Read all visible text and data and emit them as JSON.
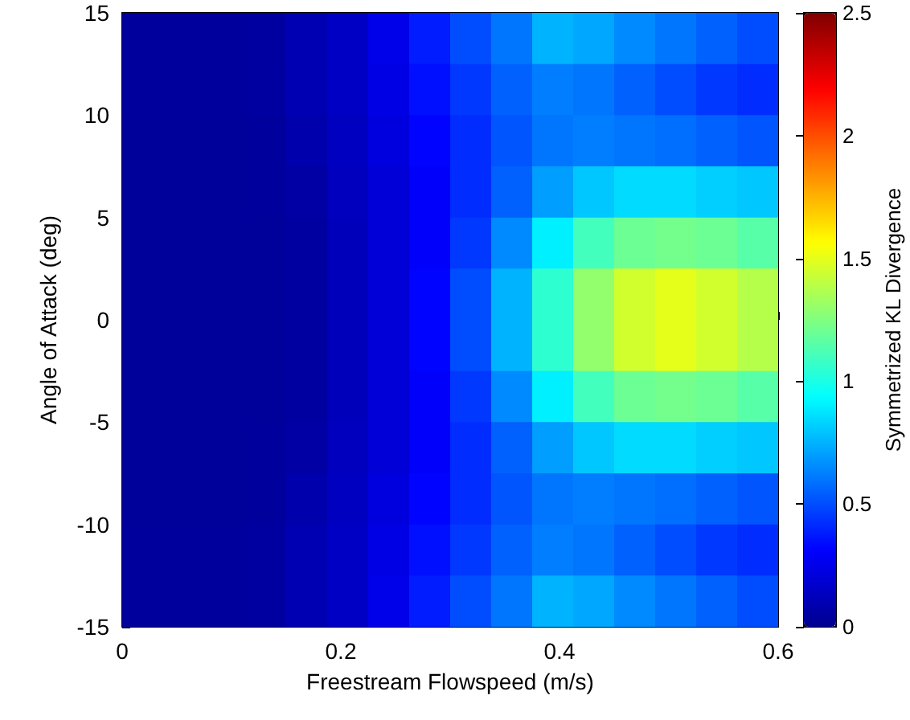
{
  "chart_data": {
    "type": "heatmap",
    "xlabel": "Freestream Flowspeed (m/s)",
    "ylabel": "Angle of Attack (deg)",
    "clabel": "Symmetrized KL Divergence",
    "xlim": [
      0,
      0.6
    ],
    "xticks": [
      0,
      0.2,
      0.4,
      0.6
    ],
    "ylim": [
      -15,
      15
    ],
    "yticks": [
      -15,
      -10,
      -5,
      0,
      5,
      10,
      15
    ],
    "clim": [
      0,
      2.5
    ],
    "cticks": [
      0,
      0.5,
      1,
      1.5,
      2,
      2.5
    ],
    "cells": [
      [
        0.04,
        0.04,
        0.04,
        0.05,
        0.1,
        0.15,
        0.25,
        0.38,
        0.5,
        0.6,
        0.75,
        0.72,
        0.65,
        0.6,
        0.55,
        0.5
      ],
      [
        0.04,
        0.04,
        0.04,
        0.05,
        0.1,
        0.15,
        0.24,
        0.35,
        0.45,
        0.55,
        0.62,
        0.6,
        0.55,
        0.5,
        0.45,
        0.42
      ],
      [
        0.03,
        0.03,
        0.03,
        0.04,
        0.08,
        0.14,
        0.22,
        0.32,
        0.42,
        0.52,
        0.6,
        0.62,
        0.6,
        0.58,
        0.55,
        0.52
      ],
      [
        0.03,
        0.03,
        0.03,
        0.04,
        0.06,
        0.13,
        0.2,
        0.3,
        0.42,
        0.55,
        0.7,
        0.8,
        0.85,
        0.85,
        0.82,
        0.8
      ],
      [
        0.03,
        0.03,
        0.03,
        0.03,
        0.05,
        0.12,
        0.2,
        0.3,
        0.45,
        0.65,
        0.9,
        1.1,
        1.2,
        1.22,
        1.2,
        1.15
      ],
      [
        0.03,
        0.03,
        0.03,
        0.03,
        0.05,
        0.12,
        0.2,
        0.32,
        0.5,
        0.75,
        1.05,
        1.3,
        1.45,
        1.5,
        1.45,
        1.38
      ],
      [
        0.03,
        0.03,
        0.03,
        0.03,
        0.05,
        0.12,
        0.2,
        0.32,
        0.5,
        0.75,
        1.05,
        1.3,
        1.45,
        1.5,
        1.45,
        1.38
      ],
      [
        0.03,
        0.03,
        0.03,
        0.03,
        0.05,
        0.12,
        0.2,
        0.3,
        0.45,
        0.65,
        0.9,
        1.1,
        1.2,
        1.22,
        1.2,
        1.15
      ],
      [
        0.03,
        0.03,
        0.03,
        0.04,
        0.06,
        0.13,
        0.2,
        0.3,
        0.42,
        0.55,
        0.7,
        0.8,
        0.85,
        0.85,
        0.82,
        0.8
      ],
      [
        0.03,
        0.03,
        0.03,
        0.04,
        0.08,
        0.14,
        0.22,
        0.32,
        0.42,
        0.52,
        0.6,
        0.62,
        0.6,
        0.58,
        0.55,
        0.52
      ],
      [
        0.04,
        0.04,
        0.04,
        0.05,
        0.1,
        0.15,
        0.24,
        0.35,
        0.45,
        0.55,
        0.62,
        0.6,
        0.55,
        0.5,
        0.45,
        0.42
      ],
      [
        0.04,
        0.04,
        0.04,
        0.05,
        0.1,
        0.15,
        0.25,
        0.38,
        0.5,
        0.6,
        0.75,
        0.72,
        0.65,
        0.6,
        0.55,
        0.5
      ]
    ]
  }
}
